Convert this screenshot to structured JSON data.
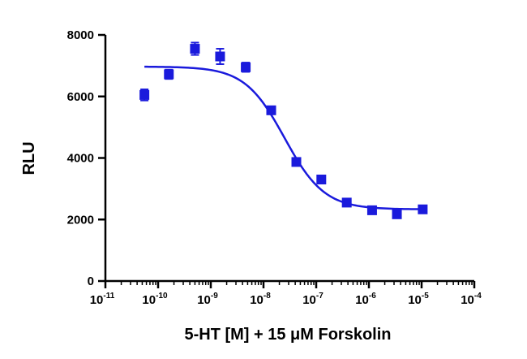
{
  "chart_data": {
    "type": "scatter",
    "xlabel": "5-HT [M] + 15 μM Forskolin",
    "ylabel": "RLU",
    "x_scale": "log",
    "xlim": [
      1e-11,
      0.0001
    ],
    "ylim": [
      0,
      8000
    ],
    "x_ticks": [
      {
        "base": "10",
        "exp": "-11"
      },
      {
        "base": "10",
        "exp": "-10"
      },
      {
        "base": "10",
        "exp": "-9"
      },
      {
        "base": "10",
        "exp": "-8"
      },
      {
        "base": "10",
        "exp": "-7"
      },
      {
        "base": "10",
        "exp": "-6"
      },
      {
        "base": "10",
        "exp": "-5"
      },
      {
        "base": "10",
        "exp": "-4"
      }
    ],
    "y_ticks": [
      "0",
      "2000",
      "4000",
      "6000",
      "8000"
    ],
    "grid": false,
    "color": "#1a1adc",
    "series": [
      {
        "x": [
          5.5e-11,
          1.6e-10,
          5e-10,
          1.5e-09,
          4.6e-09,
          1.4e-08,
          4.2e-08,
          1.25e-07,
          3.8e-07,
          1.15e-06,
          3.4e-06,
          1.05e-05
        ],
        "y": [
          6050,
          6720,
          7550,
          7300,
          6950,
          5550,
          3870,
          3300,
          2550,
          2300,
          2170,
          2330
        ],
        "err": [
          180,
          150,
          200,
          250,
          150,
          100,
          120,
          130,
          100,
          80,
          80,
          100
        ]
      }
    ],
    "fit": {
      "type": "sigmoid",
      "top": 6970,
      "bottom": 2330,
      "log_ec50": -7.6,
      "hill": -1.15,
      "x_range": [
        5.5e-11,
        1.05e-05
      ]
    }
  }
}
